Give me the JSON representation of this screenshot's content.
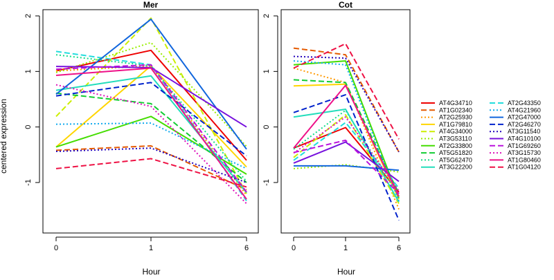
{
  "chart_data": {
    "type": "line",
    "xlabel": "Hour",
    "ylabel": "centered expression",
    "x": [
      0,
      1,
      6
    ],
    "x_tick_labels": [
      "0",
      "1",
      "6"
    ],
    "ylim": [
      -1.9,
      2.1
    ],
    "y_ticks": [
      -1,
      0,
      1,
      2
    ],
    "grid": false,
    "legend_position": "right",
    "legend": [
      {
        "name": "AT4G34710",
        "color": "#ee0000",
        "dash": "solid"
      },
      {
        "name": "AT1G02340",
        "color": "#e55a00",
        "dash": "dashed"
      },
      {
        "name": "AT2G25930",
        "color": "#ff9900",
        "dash": "dotted"
      },
      {
        "name": "AT1G79810",
        "color": "#ffd500",
        "dash": "solid"
      },
      {
        "name": "AT4G34000",
        "color": "#ccee00",
        "dash": "dashed"
      },
      {
        "name": "AT3G53110",
        "color": "#99ee00",
        "dash": "dotted"
      },
      {
        "name": "AT2G33800",
        "color": "#44dd00",
        "dash": "solid"
      },
      {
        "name": "AT5G51820",
        "color": "#11cc33",
        "dash": "dashed"
      },
      {
        "name": "AT5G62470",
        "color": "#11dd88",
        "dash": "dotted"
      },
      {
        "name": "AT3G22200",
        "color": "#22ddbb",
        "dash": "solid"
      },
      {
        "name": "AT2G43350",
        "color": "#22dddd",
        "dash": "dashed"
      },
      {
        "name": "AT4G21960",
        "color": "#11aaee",
        "dash": "dotted"
      },
      {
        "name": "AT2G47000",
        "color": "#1166dd",
        "dash": "solid"
      },
      {
        "name": "AT2G46270",
        "color": "#0022cc",
        "dash": "dashed"
      },
      {
        "name": "AT3G11540",
        "color": "#2200bb",
        "dash": "dotted"
      },
      {
        "name": "AT4G10100",
        "color": "#7711dd",
        "dash": "solid"
      },
      {
        "name": "AT1G69260",
        "color": "#bb11dd",
        "dash": "dashed"
      },
      {
        "name": "AT3G15730",
        "color": "#dd11bb",
        "dash": "dotted"
      },
      {
        "name": "AT1G80460",
        "color": "#ee1188",
        "dash": "solid"
      },
      {
        "name": "AT1G04120",
        "color": "#ee1144",
        "dash": "dashed"
      }
    ],
    "panels": [
      {
        "title": "Mer",
        "series": [
          {
            "name": "AT4G34710",
            "values": [
              1.01,
              1.38,
              -0.6
            ]
          },
          {
            "name": "AT1G02340",
            "values": [
              -0.42,
              -0.34,
              -1.13
            ]
          },
          {
            "name": "AT2G25930",
            "values": [
              1.01,
              1.1,
              -1.23
            ]
          },
          {
            "name": "AT1G79810",
            "values": [
              -0.36,
              1.1,
              -0.72
            ]
          },
          {
            "name": "AT4G34000",
            "values": [
              0.19,
              1.96,
              -1.2
            ]
          },
          {
            "name": "AT3G53110",
            "values": [
              0.98,
              1.52,
              -0.35
            ]
          },
          {
            "name": "AT2G33800",
            "values": [
              -0.36,
              0.19,
              -0.85
            ]
          },
          {
            "name": "AT5G51820",
            "values": [
              0.61,
              0.42,
              -1.0
            ]
          },
          {
            "name": "AT5G62470",
            "values": [
              1.3,
              1.1,
              -0.98
            ]
          },
          {
            "name": "AT3G22200",
            "values": [
              0.66,
              0.92,
              -1.18
            ]
          },
          {
            "name": "AT2G43350",
            "values": [
              1.36,
              1.12,
              -1.33
            ]
          },
          {
            "name": "AT4G21960",
            "values": [
              0.05,
              0.07,
              -0.75
            ]
          },
          {
            "name": "AT2G47000",
            "values": [
              0.59,
              1.94,
              -0.4
            ]
          },
          {
            "name": "AT2G46270",
            "values": [
              0.56,
              0.8,
              -0.52
            ]
          },
          {
            "name": "AT3G11540",
            "values": [
              -0.44,
              -0.38,
              -1.0
            ]
          },
          {
            "name": "AT4G10100",
            "values": [
              1.09,
              1.07,
              0.0
            ]
          },
          {
            "name": "AT1G69260",
            "values": [
              1.04,
              1.12,
              -1.17
            ]
          },
          {
            "name": "AT3G15730",
            "values": [
              0.76,
              0.37,
              -1.38
            ]
          },
          {
            "name": "AT1G80460",
            "values": [
              0.93,
              1.06,
              -1.3
            ]
          },
          {
            "name": "AT1G04120",
            "values": [
              -0.75,
              -0.57,
              -1.08
            ]
          }
        ]
      },
      {
        "title": "Cot",
        "series": [
          {
            "name": "AT4G34710",
            "values": [
              -0.38,
              -0.01,
              -1.17
            ]
          },
          {
            "name": "AT1G02340",
            "values": [
              1.42,
              1.3,
              -0.45
            ]
          },
          {
            "name": "AT2G25930",
            "values": [
              1.06,
              0.8,
              -1.48
            ]
          },
          {
            "name": "AT1G79810",
            "values": [
              0.74,
              0.77,
              -1.3
            ]
          },
          {
            "name": "AT4G34000",
            "values": [
              -0.55,
              0.22,
              -1.38
            ]
          },
          {
            "name": "AT3G53110",
            "values": [
              -0.75,
              -0.68,
              -0.81
            ]
          },
          {
            "name": "AT2G33800",
            "values": [
              1.12,
              1.19,
              -1.28
            ]
          },
          {
            "name": "AT5G51820",
            "values": [
              0.85,
              0.8,
              -1.2
            ]
          },
          {
            "name": "AT5G62470",
            "values": [
              -0.4,
              0.3,
              -1.25
            ]
          },
          {
            "name": "AT3G22200",
            "values": [
              0.18,
              0.32,
              -1.35
            ]
          },
          {
            "name": "AT2G43350",
            "values": [
              -0.6,
              0.08,
              -1.1
            ]
          },
          {
            "name": "AT4G21960",
            "values": [
              1.19,
              1.12,
              -1.33
            ]
          },
          {
            "name": "AT2G47000",
            "values": [
              -0.7,
              -0.7,
              -0.78
            ]
          },
          {
            "name": "AT2G46270",
            "values": [
              0.26,
              0.58,
              -1.68
            ]
          },
          {
            "name": "AT3G11540",
            "values": [
              1.27,
              1.24,
              -0.45
            ]
          },
          {
            "name": "AT4G10100",
            "values": [
              -0.65,
              -0.27,
              -0.98
            ]
          },
          {
            "name": "AT1G69260",
            "values": [
              -0.46,
              -0.24,
              -1.2
            ]
          },
          {
            "name": "AT3G15730",
            "values": [
              -0.47,
              0.18,
              -1.15
            ]
          },
          {
            "name": "AT1G80460",
            "values": [
              -0.38,
              0.75,
              -1.25
            ]
          },
          {
            "name": "AT1G04120",
            "values": [
              1.06,
              1.5,
              -0.22
            ]
          }
        ]
      }
    ]
  }
}
